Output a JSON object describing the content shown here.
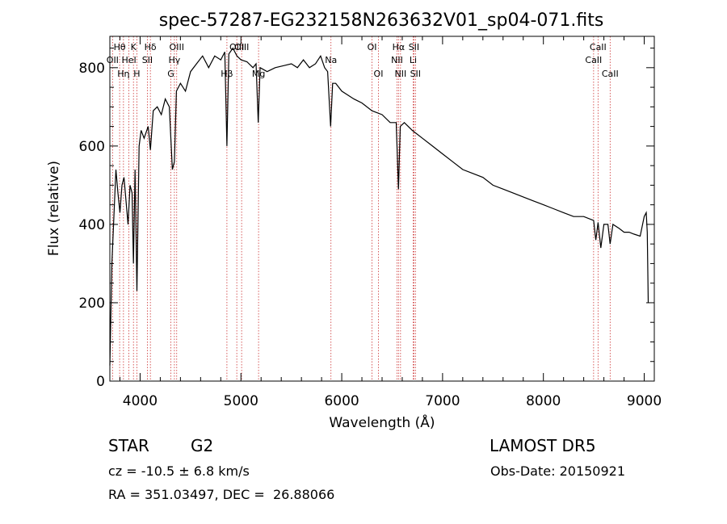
{
  "chart_data": {
    "type": "line",
    "title": "spec-57287-EG232158N263632V01_sp04-071.fits",
    "xlabel": "Wavelength (Å)",
    "ylabel": "Flux (relative)",
    "xlim": [
      3700,
      9100
    ],
    "ylim": [
      0,
      880
    ],
    "xticks": [
      4000,
      5000,
      6000,
      7000,
      8000,
      9000
    ],
    "yticks": [
      0,
      200,
      400,
      600,
      800
    ],
    "grid": false,
    "line_color": "#000000",
    "marker_color": "#cc3333",
    "spectrum": {
      "x": [
        3700,
        3720,
        3740,
        3760,
        3780,
        3800,
        3820,
        3840,
        3860,
        3880,
        3900,
        3920,
        3934,
        3950,
        3968,
        3990,
        4010,
        4040,
        4080,
        4102,
        4130,
        4170,
        4210,
        4250,
        4290,
        4320,
        4340,
        4360,
        4400,
        4450,
        4500,
        4560,
        4620,
        4680,
        4740,
        4800,
        4840,
        4861,
        4880,
        4920,
        4960,
        5000,
        5060,
        5120,
        5150,
        5172,
        5190,
        5260,
        5340,
        5420,
        5500,
        5560,
        5620,
        5680,
        5740,
        5790,
        5830,
        5860,
        5890,
        5910,
        5940,
        6000,
        6060,
        6120,
        6200,
        6300,
        6400,
        6480,
        6540,
        6563,
        6580,
        6620,
        6700,
        6800,
        6900,
        7000,
        7100,
        7200,
        7300,
        7400,
        7500,
        7600,
        7700,
        7800,
        7900,
        8000,
        8100,
        8200,
        8300,
        8400,
        8498,
        8520,
        8542,
        8570,
        8600,
        8640,
        8662,
        8690,
        8750,
        8800,
        8850,
        8900,
        8960,
        9000,
        9020,
        9030,
        9040
      ],
      "y": [
        40,
        300,
        420,
        540,
        480,
        430,
        500,
        520,
        460,
        400,
        500,
        480,
        300,
        540,
        230,
        600,
        640,
        620,
        650,
        590,
        690,
        700,
        680,
        720,
        700,
        540,
        560,
        740,
        760,
        740,
        790,
        810,
        830,
        800,
        830,
        820,
        840,
        600,
        835,
        850,
        830,
        820,
        815,
        800,
        810,
        660,
        800,
        790,
        800,
        805,
        810,
        800,
        820,
        800,
        810,
        830,
        800,
        790,
        650,
        760,
        760,
        740,
        730,
        720,
        710,
        690,
        680,
        660,
        660,
        490,
        650,
        660,
        640,
        620,
        600,
        580,
        560,
        540,
        530,
        520,
        500,
        490,
        480,
        470,
        460,
        450,
        440,
        430,
        420,
        420,
        410,
        360,
        405,
        340,
        400,
        400,
        350,
        400,
        390,
        380,
        380,
        375,
        370,
        420,
        430,
        380,
        200
      ]
    },
    "lines": [
      {
        "label": "Hθ",
        "x": 3797,
        "row": 1
      },
      {
        "label": "OII",
        "x": 3727,
        "row": 2
      },
      {
        "label": "Hη",
        "x": 3835,
        "row": 3
      },
      {
        "label": "HeI",
        "x": 3889,
        "row": 2
      },
      {
        "label": "K",
        "x": 3934,
        "row": 1
      },
      {
        "label": "SII",
        "x": 4072,
        "row": 2
      },
      {
        "label": "H",
        "x": 3968,
        "row": 3
      },
      {
        "label": "Hδ",
        "x": 4102,
        "row": 1
      },
      {
        "label": "OIII",
        "x": 4363,
        "row": 1
      },
      {
        "label": "Hγ",
        "x": 4340,
        "row": 2
      },
      {
        "label": "G",
        "x": 4305,
        "row": 3
      },
      {
        "label": "Hβ",
        "x": 4861,
        "row": 3
      },
      {
        "label": "OIII",
        "x": 4959,
        "row": 1
      },
      {
        "label": "OIII",
        "x": 5007,
        "row": 1
      },
      {
        "label": "Mg",
        "x": 5175,
        "row": 3
      },
      {
        "label": "Na",
        "x": 5893,
        "row": 2
      },
      {
        "label": "OI",
        "x": 6300,
        "row": 1
      },
      {
        "label": "OI",
        "x": 6364,
        "row": 3
      },
      {
        "label": "Hα",
        "x": 6563,
        "row": 1
      },
      {
        "label": "NII",
        "x": 6548,
        "row": 2
      },
      {
        "label": "NII",
        "x": 6583,
        "row": 3
      },
      {
        "label": "SII",
        "x": 6716,
        "row": 1
      },
      {
        "label": "Li",
        "x": 6708,
        "row": 2
      },
      {
        "label": "SII",
        "x": 6731,
        "row": 3
      },
      {
        "label": "CaII",
        "x": 8542,
        "row": 1
      },
      {
        "label": "CaII",
        "x": 8498,
        "row": 2
      },
      {
        "label": "CaII",
        "x": 8662,
        "row": 3
      }
    ]
  },
  "info": {
    "class_label": "STAR",
    "subclass": "G2",
    "survey": "LAMOST DR5",
    "redshift": "cz = -10.5 ± 6.8 km/s",
    "obs_date": "Obs-Date: 20150921",
    "coords": "RA = 351.03497, DEC =  26.88066"
  }
}
